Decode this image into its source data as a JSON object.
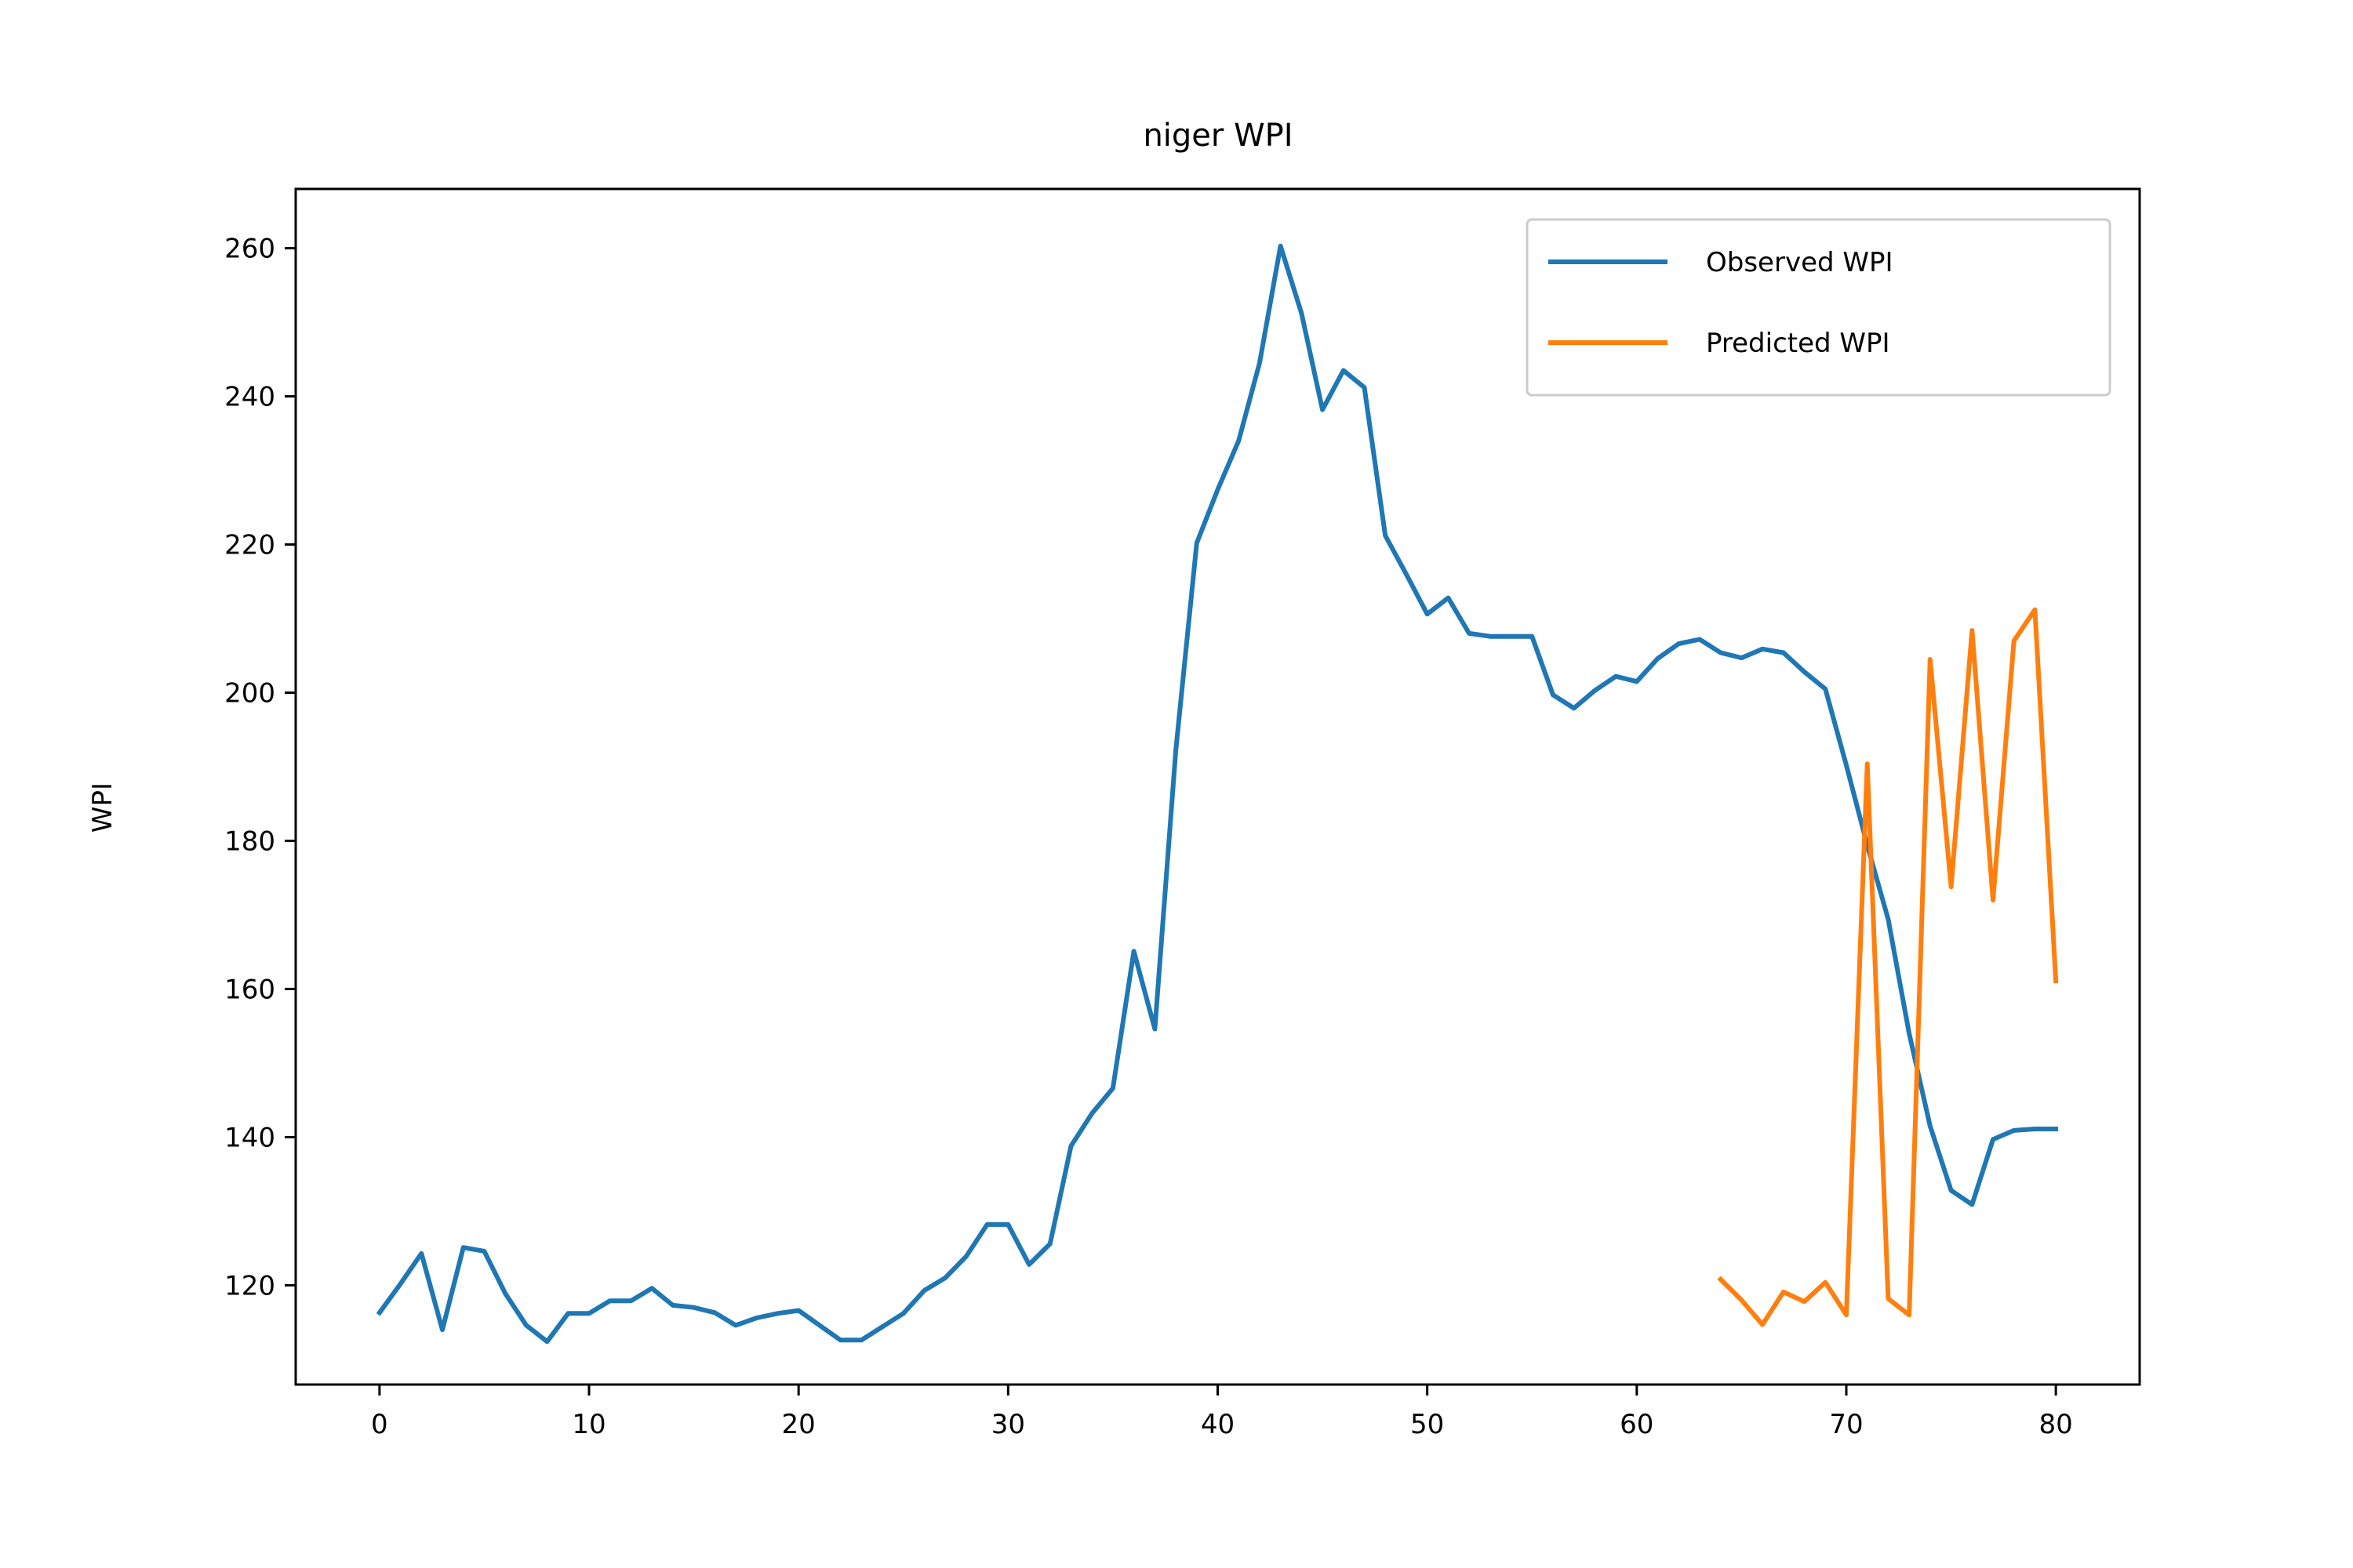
{
  "chart_data": {
    "type": "line",
    "title": "niger WPI",
    "xlabel": "",
    "ylabel": "WPI",
    "xlim": [
      -4,
      84
    ],
    "ylim": [
      106.6,
      268
    ],
    "xticks": [
      0,
      10,
      20,
      30,
      40,
      50,
      60,
      70,
      80
    ],
    "yticks": [
      120,
      140,
      160,
      180,
      200,
      220,
      240,
      260
    ],
    "grid": false,
    "legend_position": "top-right",
    "series": [
      {
        "name": "Observed WPI",
        "color": "#1f77b4",
        "x": [
          0,
          1,
          2,
          3,
          4,
          5,
          6,
          7,
          8,
          9,
          10,
          11,
          12,
          13,
          14,
          15,
          16,
          17,
          18,
          19,
          20,
          21,
          22,
          23,
          24,
          25,
          26,
          27,
          28,
          29,
          30,
          31,
          32,
          33,
          34,
          35,
          36,
          37,
          38,
          39,
          40,
          41,
          42,
          43,
          44,
          45,
          46,
          47,
          48,
          49,
          50,
          51,
          52,
          53,
          54,
          55,
          56,
          57,
          58,
          59,
          60,
          61,
          62,
          63,
          64,
          65,
          66,
          67,
          68,
          69,
          70,
          71,
          72,
          73,
          74,
          75,
          76,
          77,
          78,
          79,
          80
        ],
        "values": [
          116.3,
          120.2,
          124.3,
          114.0,
          125.1,
          124.6,
          118.9,
          114.6,
          112.4,
          116.2,
          116.2,
          117.9,
          117.9,
          119.6,
          117.3,
          117.0,
          116.3,
          114.6,
          115.6,
          116.2,
          116.6,
          114.6,
          112.6,
          112.6,
          114.4,
          116.2,
          119.3,
          121.0,
          123.9,
          128.2,
          128.2,
          122.8,
          125.6,
          138.8,
          143.2,
          146.6,
          165.1,
          154.6,
          192.2,
          220.2,
          227.4,
          234.0,
          244.5,
          260.3,
          251.2,
          238.2,
          243.5,
          241.2,
          221.2,
          216.0,
          210.6,
          212.8,
          208.0,
          207.6,
          207.6,
          207.6,
          199.7,
          197.9,
          200.3,
          202.2,
          201.5,
          204.6,
          206.6,
          207.2,
          205.4,
          204.7,
          205.9,
          205.4,
          202.8,
          200.5,
          190.2,
          179.4,
          169.4,
          154.0,
          141.5,
          132.8,
          130.9,
          139.7,
          140.9,
          141.1,
          141.1
        ]
      },
      {
        "name": "Predicted WPI",
        "color": "#ff7f0e",
        "x": [
          64,
          65,
          66,
          67,
          68,
          69,
          70,
          71,
          72,
          73,
          74,
          75,
          76,
          77,
          78,
          79,
          80
        ],
        "values": [
          120.8,
          118.0,
          114.7,
          119.1,
          117.8,
          120.4,
          116.0,
          190.4,
          118.2,
          116.0,
          204.5,
          173.8,
          208.4,
          172.0,
          207.0,
          211.2,
          161.1
        ]
      }
    ]
  }
}
